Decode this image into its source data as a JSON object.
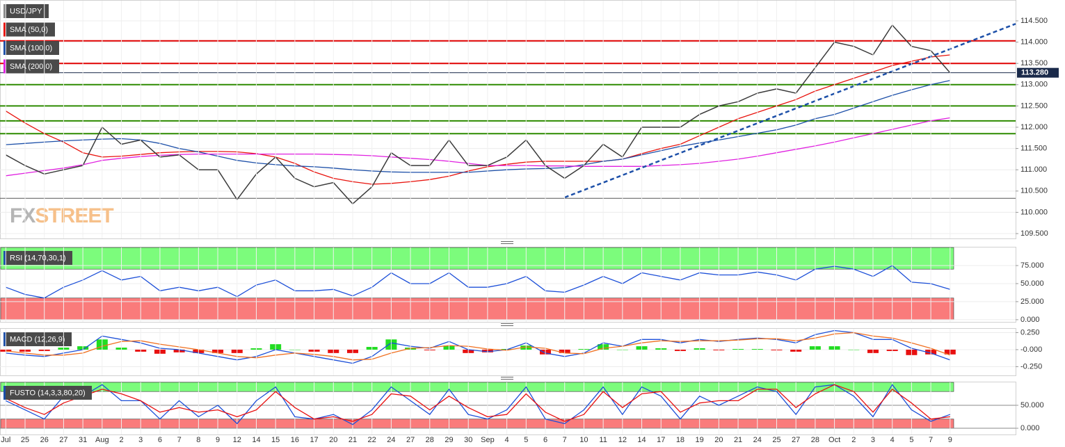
{
  "chart_data": [
    {
      "type": "line",
      "title": "USD/JPY",
      "title_color": "#8a8a8a",
      "watermark": {
        "left": "FX",
        "right": "STREET"
      },
      "xlim": [
        -0.3,
        52.4
      ],
      "ylim": [
        109.386,
        114.99
      ],
      "yticks": [
        {
          "value": 109.5,
          "label": "109.500"
        },
        {
          "value": 110,
          "label": "110.000"
        },
        {
          "value": 110.5,
          "label": "110.500"
        },
        {
          "value": 111,
          "label": "111.000"
        },
        {
          "value": 111.5,
          "label": "111.500"
        },
        {
          "value": 112,
          "label": "112.000"
        },
        {
          "value": 112.5,
          "label": "112.500"
        },
        {
          "value": 113,
          "label": "113.000"
        },
        {
          "value": 113.5,
          "label": "113.500"
        },
        {
          "value": 114,
          "label": "114.000"
        },
        {
          "value": 114.5,
          "label": "114.500"
        }
      ],
      "grid": true,
      "color": "#3a3a3a",
      "values": [
        111.35,
        111.1,
        110.9,
        111.0,
        111.1,
        112.0,
        111.6,
        111.7,
        111.3,
        111.35,
        111.0,
        111.0,
        110.3,
        110.9,
        111.3,
        110.8,
        110.6,
        110.7,
        110.2,
        110.6,
        111.4,
        111.1,
        111.1,
        111.7,
        111.1,
        111.1,
        111.3,
        111.7,
        111.1,
        110.8,
        111.1,
        111.6,
        111.3,
        112.0,
        112.0,
        112.0,
        112.3,
        112.5,
        112.6,
        112.8,
        112.9,
        112.8,
        113.4,
        114.0,
        113.9,
        113.7,
        114.4,
        113.9,
        113.8,
        113.28
      ],
      "series": [
        {
          "name": "SMA (50,0)",
          "color": "#e8120c",
          "values": [
            112.38,
            112.1,
            111.85,
            111.65,
            111.4,
            111.3,
            111.32,
            111.36,
            111.4,
            111.42,
            111.43,
            111.43,
            111.42,
            111.38,
            111.3,
            111.15,
            110.95,
            110.8,
            110.72,
            110.66,
            110.68,
            110.72,
            110.77,
            110.85,
            110.97,
            111.07,
            111.13,
            111.18,
            111.2,
            111.2,
            111.2,
            111.2,
            111.25,
            111.38,
            111.5,
            111.6,
            111.8,
            112.0,
            112.2,
            112.35,
            112.5,
            112.65,
            112.85,
            113.0,
            113.15,
            113.3,
            113.45,
            113.55,
            113.65,
            113.7
          ]
        },
        {
          "name": "SMA (100,0)",
          "color": "#1c4fa8",
          "values": [
            111.59,
            111.62,
            111.65,
            111.68,
            111.7,
            111.72,
            111.73,
            111.7,
            111.62,
            111.5,
            111.42,
            111.32,
            111.22,
            111.16,
            111.12,
            111.09,
            111.07,
            111.04,
            111.0,
            110.97,
            110.95,
            110.94,
            110.94,
            110.94,
            110.94,
            110.97,
            111.0,
            111.02,
            111.03,
            111.05,
            111.12,
            111.2,
            111.25,
            111.35,
            111.45,
            111.55,
            111.63,
            111.7,
            111.78,
            111.86,
            111.94,
            112.05,
            112.2,
            112.3,
            112.45,
            112.6,
            112.75,
            112.88,
            113.0,
            113.1
          ]
        },
        {
          "name": "SMA (200,0)",
          "color": "#e020e0",
          "values": [
            110.86,
            110.92,
            110.98,
            111.04,
            111.12,
            111.22,
            111.27,
            111.31,
            111.34,
            111.36,
            111.37,
            111.37,
            111.37,
            111.37,
            111.37,
            111.37,
            111.37,
            111.36,
            111.35,
            111.33,
            111.3,
            111.27,
            111.24,
            111.2,
            111.15,
            111.1,
            111.1,
            111.1,
            111.09,
            111.09,
            111.08,
            111.08,
            111.08,
            111.08,
            111.1,
            111.12,
            111.15,
            111.2,
            111.25,
            111.32,
            111.4,
            111.48,
            111.56,
            111.65,
            111.75,
            111.85,
            111.95,
            112.05,
            112.15,
            112.22
          ]
        }
      ],
      "levels": [
        {
          "value": 114.03,
          "color": "#e00000"
        },
        {
          "value": 113.5,
          "color": "#e00000"
        },
        {
          "value": 113.0,
          "color": "#2e8b00"
        },
        {
          "value": 112.5,
          "color": "#2e8b00"
        },
        {
          "value": 112.15,
          "color": "#2e8b00"
        },
        {
          "value": 111.85,
          "color": "#2e8b00"
        },
        {
          "value": 110.33,
          "color": "#555555"
        }
      ],
      "trendline": {
        "x": [
          29.0,
          52.4
        ],
        "y": [
          110.35,
          114.43
        ],
        "color": "#1c4fa8"
      },
      "last_price": {
        "value": 113.28,
        "label": "113.280",
        "color": "#1a2a4a"
      }
    },
    {
      "type": "line",
      "title": "RSI (14,70,30,1)",
      "title_color": "#1c4fa8",
      "xlim": [
        -0.3,
        52.4
      ],
      "ylim": [
        -3,
        101
      ],
      "yticks": [
        {
          "value": 0,
          "label": "0.000"
        },
        {
          "value": 25,
          "label": "25.000"
        },
        {
          "value": 50,
          "label": "50.000"
        },
        {
          "value": 75,
          "label": "75.000"
        }
      ],
      "zones": [
        {
          "range": [
            70,
            100
          ],
          "color": "#7cfc7c"
        },
        {
          "range": [
            0,
            30
          ],
          "color": "#fa7b7b"
        }
      ],
      "series": [
        {
          "color": "#1c4fd8",
          "values": [
            45,
            35,
            30,
            45,
            55,
            68,
            55,
            60,
            40,
            45,
            40,
            45,
            32,
            48,
            55,
            40,
            40,
            42,
            33,
            45,
            65,
            50,
            50,
            65,
            45,
            45,
            50,
            60,
            40,
            38,
            48,
            60,
            50,
            65,
            60,
            55,
            65,
            62,
            62,
            66,
            62,
            55,
            70,
            74,
            70,
            60,
            75,
            52,
            50,
            42
          ]
        }
      ]
    },
    {
      "type": "line",
      "title": "MACD (12,26,9)",
      "title_color": "#1c4fa8",
      "xlim": [
        -0.3,
        52.4
      ],
      "ylim": [
        -0.378,
        0.316
      ],
      "yticks": [
        {
          "value": 0.25,
          "label": "0.250"
        },
        {
          "value": 0,
          "label": "-0.000"
        },
        {
          "value": -0.25,
          "label": "-0.250"
        }
      ],
      "histogram": {
        "up_color": "#22dd22",
        "down_color": "#e81010",
        "values": [
          -0.03,
          -0.03,
          -0.02,
          0.03,
          0.05,
          0.15,
          0.03,
          -0.03,
          -0.06,
          -0.04,
          -0.05,
          -0.05,
          -0.05,
          0.02,
          0.08,
          0.0,
          -0.03,
          -0.05,
          -0.05,
          0.04,
          0.15,
          0.03,
          -0.01,
          0.06,
          -0.05,
          -0.04,
          0.01,
          0.06,
          -0.07,
          -0.05,
          0.01,
          0.08,
          0.0,
          0.05,
          0.02,
          -0.02,
          0.02,
          -0.01,
          0.01,
          0.01,
          -0.01,
          -0.03,
          0.05,
          0.05,
          0.0,
          -0.05,
          -0.02,
          -0.08,
          -0.07,
          -0.07
        ]
      },
      "series": [
        {
          "color": "#1c4fd8",
          "values": [
            -0.05,
            -0.08,
            -0.1,
            -0.05,
            0.0,
            0.2,
            0.15,
            0.1,
            0.02,
            0.0,
            -0.05,
            -0.1,
            -0.15,
            -0.1,
            0.0,
            -0.05,
            -0.1,
            -0.15,
            -0.2,
            -0.1,
            0.1,
            0.05,
            0.02,
            0.12,
            0.0,
            -0.03,
            0.0,
            0.1,
            -0.05,
            -0.1,
            -0.05,
            0.1,
            0.05,
            0.15,
            0.15,
            0.1,
            0.15,
            0.12,
            0.15,
            0.17,
            0.15,
            0.1,
            0.22,
            0.28,
            0.25,
            0.15,
            0.15,
            0.02,
            -0.05,
            -0.15
          ]
        },
        {
          "color": "#f07020",
          "values": [
            -0.02,
            -0.05,
            -0.08,
            -0.08,
            -0.05,
            0.05,
            0.12,
            0.13,
            0.08,
            0.04,
            0.0,
            -0.05,
            -0.1,
            -0.12,
            -0.08,
            -0.05,
            -0.07,
            -0.1,
            -0.15,
            -0.14,
            -0.05,
            0.02,
            0.03,
            0.06,
            0.05,
            0.01,
            -0.01,
            0.04,
            0.02,
            -0.05,
            -0.06,
            0.02,
            0.05,
            0.1,
            0.13,
            0.12,
            0.13,
            0.13,
            0.14,
            0.16,
            0.16,
            0.13,
            0.17,
            0.23,
            0.25,
            0.2,
            0.17,
            0.1,
            0.02,
            -0.08
          ]
        }
      ]
    },
    {
      "type": "line",
      "title": "FUSTO (14,3,3,80,20)",
      "title_color": "#1c4fa8",
      "xlim": [
        -0.3,
        52.4
      ],
      "ylim": [
        -13.6,
        101.5
      ],
      "yticks": [
        {
          "value": 0,
          "label": "0.000"
        },
        {
          "value": 50,
          "label": "50.000"
        }
      ],
      "zones": [
        {
          "range": [
            80,
            100
          ],
          "color": "#7cfc7c"
        },
        {
          "range": [
            0,
            20
          ],
          "color": "#fa7b7b"
        }
      ],
      "series": [
        {
          "color": "#1c4fd8",
          "values": [
            60,
            40,
            20,
            70,
            70,
            95,
            60,
            60,
            20,
            60,
            25,
            50,
            10,
            60,
            90,
            25,
            20,
            30,
            8,
            40,
            90,
            60,
            30,
            85,
            30,
            20,
            40,
            90,
            20,
            10,
            40,
            90,
            30,
            90,
            70,
            20,
            70,
            50,
            70,
            90,
            80,
            30,
            90,
            95,
            70,
            25,
            95,
            40,
            15,
            30
          ]
        },
        {
          "color": "#e81010",
          "values": [
            65,
            45,
            30,
            55,
            70,
            85,
            75,
            60,
            35,
            45,
            35,
            40,
            25,
            40,
            80,
            45,
            20,
            25,
            15,
            30,
            75,
            70,
            40,
            70,
            45,
            25,
            30,
            75,
            35,
            15,
            30,
            80,
            45,
            75,
            80,
            35,
            55,
            60,
            60,
            85,
            85,
            45,
            75,
            95,
            80,
            35,
            85,
            55,
            20,
            25
          ]
        }
      ],
      "xticks": [
        {
          "value": 0,
          "label": "Jul"
        },
        {
          "value": 1,
          "label": "25"
        },
        {
          "value": 2,
          "label": "26"
        },
        {
          "value": 3,
          "label": "27"
        },
        {
          "value": 4,
          "label": "31"
        },
        {
          "value": 5,
          "label": "Aug"
        },
        {
          "value": 6,
          "label": "2"
        },
        {
          "value": 7,
          "label": "3"
        },
        {
          "value": 8,
          "label": "6"
        },
        {
          "value": 9,
          "label": "7"
        },
        {
          "value": 10,
          "label": "8"
        },
        {
          "value": 11,
          "label": "9"
        },
        {
          "value": 12,
          "label": "12"
        },
        {
          "value": 13,
          "label": "14"
        },
        {
          "value": 14,
          "label": "15"
        },
        {
          "value": 15,
          "label": "16"
        },
        {
          "value": 16,
          "label": "17"
        },
        {
          "value": 17,
          "label": "20"
        },
        {
          "value": 18,
          "label": "21"
        },
        {
          "value": 19,
          "label": "22"
        },
        {
          "value": 20,
          "label": "24"
        },
        {
          "value": 21,
          "label": "27"
        },
        {
          "value": 22,
          "label": "28"
        },
        {
          "value": 23,
          "label": "29"
        },
        {
          "value": 24,
          "label": "30"
        },
        {
          "value": 25,
          "label": "Sep"
        },
        {
          "value": 26,
          "label": "4"
        },
        {
          "value": 27,
          "label": "5"
        },
        {
          "value": 28,
          "label": "6"
        },
        {
          "value": 29,
          "label": "7"
        },
        {
          "value": 30,
          "label": "10"
        },
        {
          "value": 31,
          "label": "11"
        },
        {
          "value": 32,
          "label": "12"
        },
        {
          "value": 33,
          "label": "14"
        },
        {
          "value": 34,
          "label": "17"
        },
        {
          "value": 35,
          "label": "18"
        },
        {
          "value": 36,
          "label": "19"
        },
        {
          "value": 37,
          "label": "20"
        },
        {
          "value": 38,
          "label": "21"
        },
        {
          "value": 39,
          "label": "24"
        },
        {
          "value": 40,
          "label": "25"
        },
        {
          "value": 41,
          "label": "27"
        },
        {
          "value": 42,
          "label": "28"
        },
        {
          "value": 43,
          "label": "Oct"
        },
        {
          "value": 44,
          "label": "2"
        },
        {
          "value": 45,
          "label": "3"
        },
        {
          "value": 46,
          "label": "4"
        },
        {
          "value": 47,
          "label": "5"
        },
        {
          "value": 48,
          "label": "7"
        },
        {
          "value": 49,
          "label": "9"
        }
      ]
    }
  ]
}
